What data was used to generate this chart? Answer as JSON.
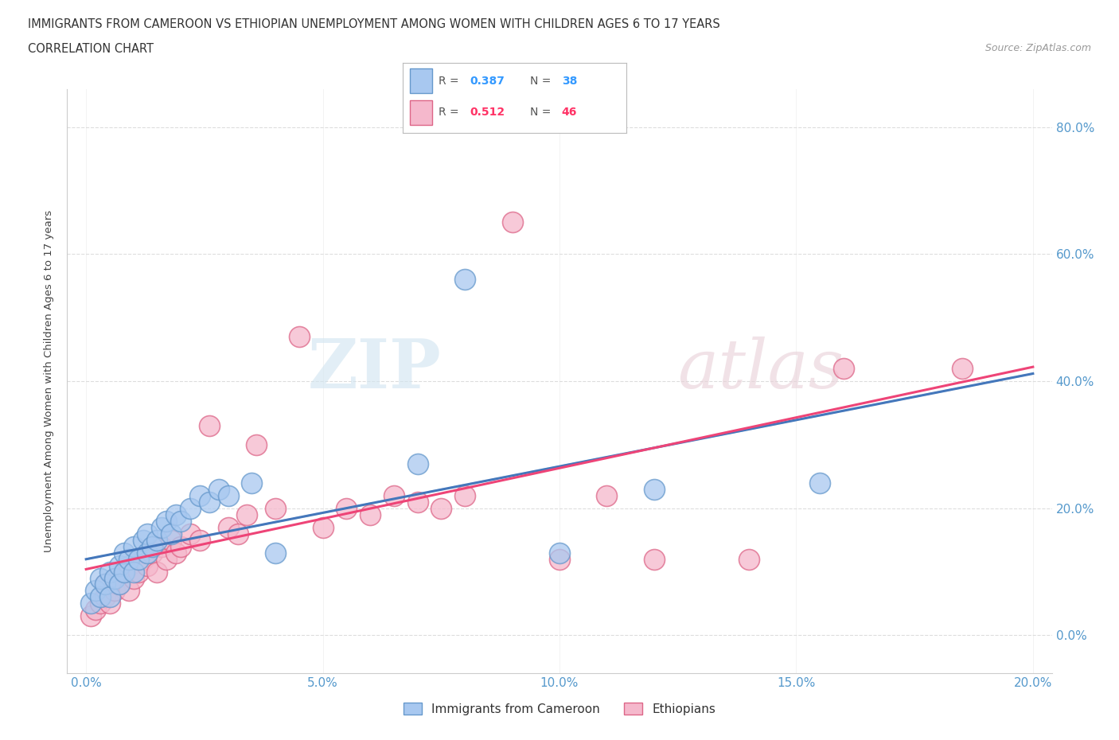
{
  "title_line1": "IMMIGRANTS FROM CAMEROON VS ETHIOPIAN UNEMPLOYMENT AMONG WOMEN WITH CHILDREN AGES 6 TO 17 YEARS",
  "title_line2": "CORRELATION CHART",
  "source": "Source: ZipAtlas.com",
  "ylabel": "Unemployment Among Women with Children Ages 6 to 17 years",
  "xlim": [
    0.0,
    0.2
  ],
  "ylim": [
    -0.06,
    0.86
  ],
  "xtick_labels": [
    "0.0%",
    "",
    "5.0%",
    "",
    "10.0%",
    "",
    "15.0%",
    "",
    "20.0%"
  ],
  "xtick_vals": [
    0.0,
    0.025,
    0.05,
    0.075,
    0.1,
    0.125,
    0.15,
    0.175,
    0.2
  ],
  "xtick_show": [
    0.0,
    0.05,
    0.1,
    0.15,
    0.2
  ],
  "xtick_show_labels": [
    "0.0%",
    "5.0%",
    "10.0%",
    "15.0%",
    "20.0%"
  ],
  "ytick_vals": [
    0.0,
    0.2,
    0.4,
    0.6,
    0.8
  ],
  "ytick_labels": [
    "0.0%",
    "20.0%",
    "40.0%",
    "60.0%",
    "80.0%"
  ],
  "cameroon_color": "#a8c8f0",
  "cameroon_edge_color": "#6699cc",
  "ethiopian_color": "#f5b8cc",
  "ethiopian_edge_color": "#dd6688",
  "cameroon_R": 0.387,
  "cameroon_N": 38,
  "ethiopian_R": 0.512,
  "ethiopian_N": 46,
  "cameroon_scatter_x": [
    0.001,
    0.002,
    0.003,
    0.003,
    0.004,
    0.005,
    0.005,
    0.006,
    0.007,
    0.007,
    0.008,
    0.008,
    0.009,
    0.01,
    0.01,
    0.011,
    0.012,
    0.013,
    0.013,
    0.014,
    0.015,
    0.016,
    0.017,
    0.018,
    0.019,
    0.02,
    0.022,
    0.024,
    0.026,
    0.028,
    0.03,
    0.035,
    0.04,
    0.07,
    0.08,
    0.1,
    0.12,
    0.155
  ],
  "cameroon_scatter_y": [
    0.05,
    0.07,
    0.06,
    0.09,
    0.08,
    0.06,
    0.1,
    0.09,
    0.11,
    0.08,
    0.1,
    0.13,
    0.12,
    0.1,
    0.14,
    0.12,
    0.15,
    0.13,
    0.16,
    0.14,
    0.15,
    0.17,
    0.18,
    0.16,
    0.19,
    0.18,
    0.2,
    0.22,
    0.21,
    0.23,
    0.22,
    0.24,
    0.13,
    0.27,
    0.56,
    0.13,
    0.23,
    0.24
  ],
  "ethiopian_scatter_x": [
    0.001,
    0.002,
    0.003,
    0.004,
    0.004,
    0.005,
    0.006,
    0.006,
    0.007,
    0.008,
    0.009,
    0.009,
    0.01,
    0.011,
    0.012,
    0.013,
    0.014,
    0.015,
    0.016,
    0.017,
    0.018,
    0.019,
    0.02,
    0.022,
    0.024,
    0.026,
    0.03,
    0.032,
    0.034,
    0.036,
    0.04,
    0.045,
    0.05,
    0.055,
    0.06,
    0.065,
    0.07,
    0.075,
    0.08,
    0.09,
    0.1,
    0.11,
    0.12,
    0.14,
    0.16,
    0.185
  ],
  "ethiopian_scatter_y": [
    0.03,
    0.04,
    0.05,
    0.06,
    0.08,
    0.05,
    0.07,
    0.09,
    0.08,
    0.1,
    0.07,
    0.11,
    0.09,
    0.1,
    0.12,
    0.11,
    0.13,
    0.1,
    0.14,
    0.12,
    0.15,
    0.13,
    0.14,
    0.16,
    0.15,
    0.33,
    0.17,
    0.16,
    0.19,
    0.3,
    0.2,
    0.47,
    0.17,
    0.2,
    0.19,
    0.22,
    0.21,
    0.2,
    0.22,
    0.65,
    0.12,
    0.22,
    0.12,
    0.12,
    0.42,
    0.42
  ],
  "background_color": "#ffffff",
  "grid_color": "#dddddd",
  "watermark_text_1": "ZIP",
  "watermark_text_2": "atlas",
  "cameroon_line_color": "#4477bb",
  "ethiopian_line_color": "#ee4477",
  "tick_color": "#5599cc",
  "legend_box_color": "#ffffff",
  "legend_border_color": "#cccccc"
}
